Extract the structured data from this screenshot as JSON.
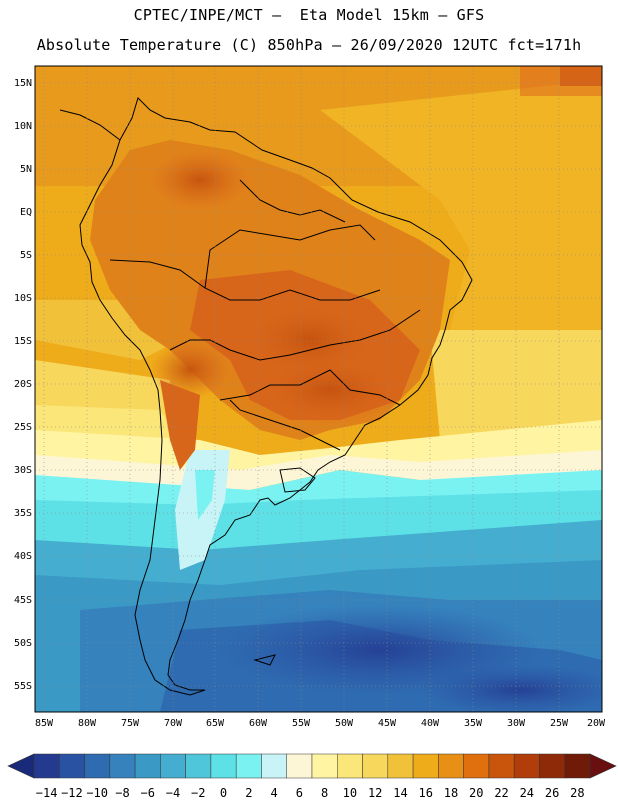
{
  "header": {
    "line1": "CPTEC/INPE/MCT –  Eta Model 15km – GFS",
    "line2": "Absolute Temperature (C) 850hPa – 26/09/2020 12UTC fct=171h"
  },
  "map": {
    "lat_labels": [
      "15N",
      "10N",
      "5N",
      "EQ",
      "5S",
      "10S",
      "15S",
      "20S",
      "25S",
      "30S",
      "35S",
      "40S",
      "45S",
      "50S",
      "55S"
    ],
    "lon_labels": [
      "85W",
      "80W",
      "75W",
      "70W",
      "65W",
      "60W",
      "55W",
      "50W",
      "45W",
      "40W",
      "35W",
      "30W",
      "25W",
      "20W"
    ],
    "grid": "dotted",
    "colorbar": {
      "labels": [
        "-14",
        "-12",
        "-10",
        "-8",
        "-6",
        "-4",
        "-2",
        "0",
        "2",
        "4",
        "6",
        "8",
        "10",
        "12",
        "14",
        "16",
        "18",
        "20",
        "22",
        "24",
        "26",
        "28"
      ],
      "colors": [
        "#233a8e",
        "#2a52a2",
        "#2e6bb0",
        "#3582bd",
        "#3b9ac5",
        "#45aed0",
        "#4fc6da",
        "#5de0e6",
        "#7af2f2",
        "#c9f4f7",
        "#fdf6d6",
        "#fef4a2",
        "#fbe67a",
        "#f7d75c",
        "#f2c13a",
        "#efac1a",
        "#e89016",
        "#e0700e",
        "#c9540b",
        "#b03d0a",
        "#8f2a09",
        "#701a08"
      ],
      "under_color": "#1a2a7a",
      "over_color": "#6a0f0f"
    }
  }
}
